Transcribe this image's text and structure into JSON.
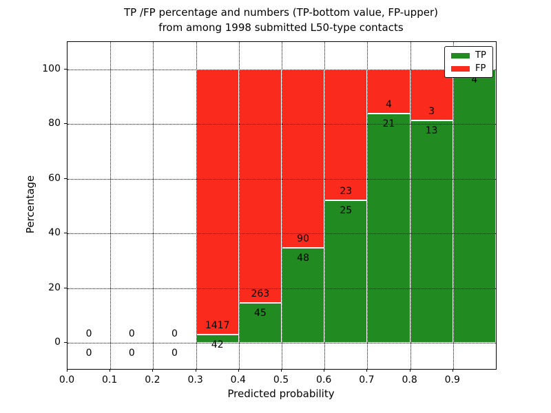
{
  "chart_data": {
    "type": "bar",
    "subtype": "stacked-percentage",
    "title_line1": "TP /FP percentage and numbers (TP-bottom value, FP-upper)",
    "title_line2": "from among 1998 submitted L50-type contacts",
    "xlabel": "Predicted probability",
    "ylabel": "Percentage",
    "total_contacts": 1998,
    "xlim": [
      0.0,
      1.0
    ],
    "ylim": [
      -9.6,
      110.1
    ],
    "grid": true,
    "grid_style": "dotted",
    "bar_edge_color": "#ffffff",
    "xticks": {
      "values": [
        0.0,
        0.1,
        0.2,
        0.3,
        0.4,
        0.5,
        0.6,
        0.7,
        0.8,
        0.9
      ],
      "labels": [
        "0.0",
        "0.1",
        "0.2",
        "0.3",
        "0.4",
        "0.5",
        "0.6",
        "0.7",
        "0.8",
        "0.9"
      ]
    },
    "yticks": {
      "values": [
        0,
        20,
        40,
        60,
        80,
        100
      ],
      "labels": [
        "0",
        "20",
        "40",
        "60",
        "80",
        "100"
      ]
    },
    "legend": {
      "position": "upper-right",
      "entries": [
        {
          "label": "TP",
          "color": "#218a21"
        },
        {
          "label": "FP",
          "color": "#fa2b1c"
        }
      ]
    },
    "bins": [
      {
        "x0": 0.0,
        "x1": 0.1,
        "tp": 0,
        "fp": 0,
        "tp_pct": 0,
        "fp_pct": 0
      },
      {
        "x0": 0.1,
        "x1": 0.2,
        "tp": 0,
        "fp": 0,
        "tp_pct": 0,
        "fp_pct": 0
      },
      {
        "x0": 0.2,
        "x1": 0.3,
        "tp": 0,
        "fp": 0,
        "tp_pct": 0,
        "fp_pct": 0
      },
      {
        "x0": 0.3,
        "x1": 0.4,
        "tp": 42,
        "fp": 1417,
        "tp_pct": 2.88,
        "fp_pct": 97.12
      },
      {
        "x0": 0.4,
        "x1": 0.5,
        "tp": 45,
        "fp": 263,
        "tp_pct": 14.61,
        "fp_pct": 85.39
      },
      {
        "x0": 0.5,
        "x1": 0.6,
        "tp": 48,
        "fp": 90,
        "tp_pct": 34.78,
        "fp_pct": 65.22
      },
      {
        "x0": 0.6,
        "x1": 0.7,
        "tp": 25,
        "fp": 23,
        "tp_pct": 52.08,
        "fp_pct": 47.92
      },
      {
        "x0": 0.7,
        "x1": 0.8,
        "tp": 21,
        "fp": 4,
        "tp_pct": 84.0,
        "fp_pct": 16.0
      },
      {
        "x0": 0.8,
        "x1": 0.9,
        "tp": 13,
        "fp": 3,
        "tp_pct": 81.25,
        "fp_pct": 18.75
      },
      {
        "x0": 0.9,
        "x1": 1.0,
        "tp": 4,
        "fp": 0,
        "tp_pct": 100.0,
        "fp_pct": 0.0
      }
    ]
  }
}
